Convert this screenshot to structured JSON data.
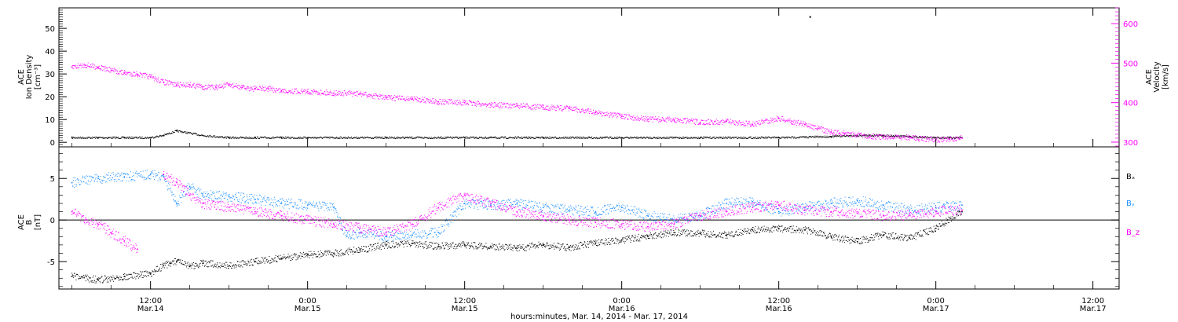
{
  "chart_data": [
    {
      "type": "scatter",
      "panel": "top",
      "ylabel_left": [
        "ACE",
        "Ion Density",
        "[cm⁻³]"
      ],
      "ylabel_right": [
        "ACE",
        "Velocity",
        "[km/s]"
      ],
      "left_axis": {
        "ylim": [
          -2,
          59
        ],
        "ticks": [
          0,
          10,
          20,
          30,
          40,
          50
        ]
      },
      "right_axis": {
        "ylim": [
          288,
          640
        ],
        "ticks": [
          300,
          400,
          500,
          600
        ]
      },
      "grid": false,
      "series": [
        {
          "name": "Ion Density",
          "axis": "left",
          "color": "#000000",
          "x": [
            6,
            8,
            10,
            12,
            13,
            14,
            16,
            18,
            20,
            22,
            24,
            30,
            36,
            42,
            48,
            54,
            60,
            64,
            66,
            68,
            70,
            72,
            73,
            74
          ],
          "y": [
            2,
            2,
            2,
            2,
            3,
            5,
            3,
            2,
            2,
            2,
            2,
            2,
            2,
            2,
            2,
            2,
            2,
            2.5,
            3,
            3,
            2.5,
            2,
            2,
            2
          ]
        },
        {
          "name": "Velocity",
          "axis": "right",
          "color": "#ff00ff",
          "x": [
            6,
            7,
            8,
            9,
            10,
            11,
            12,
            13,
            14,
            15,
            16,
            17,
            18,
            19,
            20,
            21,
            22,
            24,
            26,
            28,
            30,
            32,
            34,
            36,
            38,
            40,
            42,
            44,
            46,
            48,
            50,
            52,
            54,
            56,
            58,
            60,
            61,
            62,
            63,
            64,
            65,
            66,
            67,
            68,
            70,
            72,
            73,
            74
          ],
          "y": [
            490,
            495,
            490,
            482,
            475,
            472,
            465,
            452,
            445,
            445,
            440,
            438,
            445,
            438,
            435,
            435,
            430,
            428,
            424,
            422,
            412,
            410,
            402,
            400,
            394,
            392,
            388,
            385,
            375,
            365,
            358,
            356,
            350,
            352,
            345,
            360,
            352,
            345,
            335,
            325,
            322,
            318,
            315,
            312,
            312,
            305,
            308,
            310
          ]
        },
        {
          "name": "outlier",
          "axis": "left",
          "color": "#000000",
          "x": [
            62.4
          ],
          "y": [
            55
          ]
        }
      ]
    },
    {
      "type": "scatter",
      "panel": "bottom",
      "ylabel_left": [
        "ACE",
        "B",
        "[nT]"
      ],
      "ylim": [
        -8.3,
        8.8
      ],
      "ticks": [
        -5,
        0,
        5
      ],
      "zero_line": true,
      "grid": false,
      "legend": [
        "Bₓ",
        "Bᵧ",
        "B_z"
      ],
      "legend_placement": "right",
      "series": [
        {
          "name": "Bₓ",
          "color": "#000000",
          "x": [
            6,
            8,
            10,
            12,
            13,
            13.5,
            14,
            15,
            16,
            18,
            20,
            22,
            24,
            26,
            28,
            30,
            32,
            34,
            36,
            38,
            40,
            42,
            44,
            46,
            48,
            50,
            52,
            54,
            56,
            58,
            60,
            62,
            64,
            66,
            68,
            70,
            72,
            74
          ],
          "y": [
            -6.8,
            -7.2,
            -6.8,
            -6.5,
            -5.5,
            -5.2,
            -5,
            -5.6,
            -5.2,
            -5.5,
            -5.0,
            -4.6,
            -4.2,
            -4.0,
            -3.6,
            -3.0,
            -2.8,
            -3.2,
            -3.0,
            -3.2,
            -3.4,
            -3.0,
            -3.3,
            -2.8,
            -2.4,
            -2.0,
            -1.5,
            -1.6,
            -1.8,
            -1.2,
            -1.0,
            -1.2,
            -2.0,
            -2.6,
            -1.8,
            -2.2,
            -1.0,
            1.0
          ]
        },
        {
          "name": "Bᵧ",
          "color": "#1e90ff",
          "x": [
            6,
            8,
            10,
            12,
            13,
            14,
            15,
            16,
            18,
            20,
            22,
            24,
            26,
            27,
            28,
            30,
            32,
            34,
            36,
            38,
            40,
            42,
            44,
            46,
            48,
            50,
            52,
            54,
            56,
            58,
            60,
            62,
            64,
            66,
            68,
            70,
            72,
            74
          ],
          "y": [
            4.5,
            5.0,
            5.2,
            5.5,
            5.2,
            2.0,
            4.0,
            3.0,
            2.8,
            2.5,
            2.0,
            1.8,
            1.5,
            -2.0,
            -1.5,
            -2.0,
            -1.8,
            -1.5,
            2.0,
            1.8,
            2.0,
            1.5,
            1.2,
            1.0,
            1.5,
            0.5,
            0.0,
            0.5,
            2.0,
            2.2,
            1.0,
            1.5,
            2.0,
            2.3,
            1.8,
            1.2,
            1.5,
            1.8
          ]
        },
        {
          "name": "B_z",
          "color": "#ff00ff",
          "x": [
            6,
            7,
            8,
            9,
            10,
            11,
            12,
            13,
            14,
            15,
            16,
            18,
            20,
            22,
            24,
            26,
            28,
            30,
            32,
            34,
            36,
            38,
            40,
            42,
            44,
            46,
            48,
            50,
            52,
            54,
            56,
            58,
            60,
            62,
            64,
            66,
            68,
            70,
            72,
            74
          ],
          "y": [
            1.0,
            0.0,
            -0.5,
            -1.5,
            -2.5,
            -3.5,
            null,
            5.5,
            4.5,
            3.0,
            2.0,
            1.5,
            1.0,
            0.5,
            0.0,
            -0.5,
            -1.0,
            -1.5,
            -0.5,
            1.5,
            3.0,
            2.0,
            1.0,
            0.5,
            0.0,
            -0.3,
            -0.5,
            -0.8,
            -0.5,
            0.5,
            1.0,
            1.5,
            1.8,
            1.2,
            1.0,
            0.8,
            0.5,
            0.6,
            1.0,
            1.2
          ]
        }
      ]
    }
  ],
  "x_axis": {
    "range": [
      5,
      86
    ],
    "unit": "hours since Mar.14 00:00",
    "ticks": [
      {
        "x": 12,
        "time": "12:00",
        "date": "Mar.14"
      },
      {
        "x": 24,
        "time": "0:00",
        "date": "Mar.15"
      },
      {
        "x": 36,
        "time": "12:00",
        "date": "Mar.15"
      },
      {
        "x": 48,
        "time": "0:00",
        "date": "Mar.16"
      },
      {
        "x": 60,
        "time": "12:00",
        "date": "Mar.16"
      },
      {
        "x": 72,
        "time": "0:00",
        "date": "Mar.17"
      },
      {
        "x": 84,
        "time": "12:00",
        "date": "Mar.17"
      }
    ],
    "xlabel": "hours:minutes, Mar. 14, 2014 - Mar. 17, 2014"
  }
}
